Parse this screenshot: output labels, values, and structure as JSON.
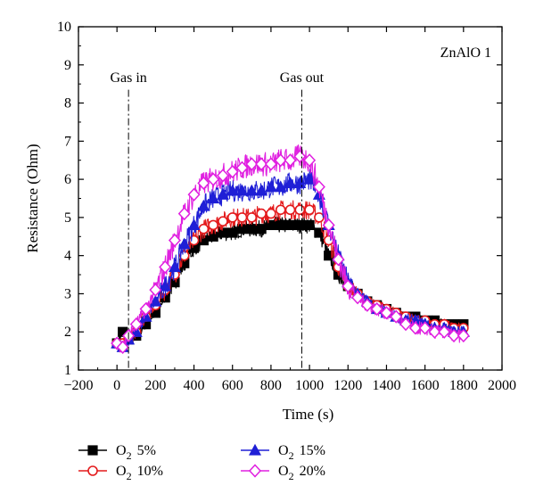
{
  "chart_data": {
    "type": "line",
    "xlabel": "Time (s)",
    "ylabel": "Resistance (Ohm)",
    "xlim": [
      -200,
      2000
    ],
    "ylim": [
      1,
      10
    ],
    "xticks": [
      -200,
      0,
      200,
      400,
      600,
      800,
      1000,
      1200,
      1400,
      1600,
      1800,
      2000
    ],
    "xtick_labels": [
      "−200",
      "0",
      "200",
      "400",
      "600",
      "800",
      "1000",
      "1200",
      "1400",
      "1600",
      "1800",
      "2000"
    ],
    "yticks": [
      1,
      2,
      3,
      4,
      5,
      6,
      7,
      8,
      9,
      10
    ],
    "ytick_labels": [
      "1",
      "2",
      "3",
      "4",
      "5",
      "6",
      "7",
      "8",
      "9",
      "10"
    ],
    "grid": false,
    "legend_position": "bottom",
    "annotations": [
      {
        "text": "ZnAlO 1",
        "position": "top-right"
      },
      {
        "text": "Gas in",
        "x": 60,
        "line": "dash-dot"
      },
      {
        "text": "Gas out",
        "x": 960,
        "line": "dash-dot"
      }
    ],
    "series": [
      {
        "label_main": "O",
        "label_sub": "2",
        "label_value": "5%",
        "color": "#000000",
        "marker": "square",
        "filled": true,
        "x": [
          0,
          30,
          60,
          100,
          150,
          200,
          250,
          300,
          350,
          400,
          450,
          500,
          550,
          600,
          650,
          700,
          750,
          800,
          850,
          900,
          950,
          1000,
          1050,
          1100,
          1150,
          1200,
          1250,
          1300,
          1350,
          1400,
          1450,
          1500,
          1550,
          1600,
          1650,
          1700,
          1750,
          1800
        ],
        "y": [
          1.7,
          2.0,
          1.8,
          1.9,
          2.2,
          2.5,
          2.9,
          3.3,
          3.8,
          4.2,
          4.4,
          4.5,
          4.6,
          4.6,
          4.7,
          4.7,
          4.7,
          4.8,
          4.8,
          4.8,
          4.8,
          4.8,
          4.6,
          4.0,
          3.5,
          3.2,
          3.0,
          2.8,
          2.7,
          2.6,
          2.5,
          2.4,
          2.4,
          2.3,
          2.3,
          2.2,
          2.2,
          2.2
        ]
      },
      {
        "label_main": "O",
        "label_sub": "2",
        "label_value": "10%",
        "color": "#e41a1c",
        "marker": "circle",
        "filled": false,
        "x": [
          0,
          30,
          60,
          100,
          150,
          200,
          250,
          300,
          350,
          400,
          450,
          500,
          550,
          600,
          650,
          700,
          750,
          800,
          850,
          900,
          950,
          1000,
          1050,
          1100,
          1150,
          1200,
          1250,
          1300,
          1350,
          1400,
          1450,
          1500,
          1550,
          1600,
          1650,
          1700,
          1750,
          1800
        ],
        "y": [
          1.7,
          1.7,
          1.8,
          2.0,
          2.4,
          2.7,
          3.1,
          3.5,
          4.0,
          4.4,
          4.7,
          4.8,
          4.9,
          5.0,
          5.0,
          5.0,
          5.1,
          5.1,
          5.2,
          5.2,
          5.2,
          5.2,
          5.0,
          4.4,
          3.7,
          3.2,
          3.0,
          2.8,
          2.7,
          2.6,
          2.5,
          2.4,
          2.3,
          2.3,
          2.2,
          2.2,
          2.1,
          2.1
        ]
      },
      {
        "label_main": "O",
        "label_sub": "2",
        "label_value": "15%",
        "color": "#1f1fd6",
        "marker": "triangle",
        "filled": true,
        "x": [
          0,
          30,
          60,
          100,
          150,
          200,
          250,
          300,
          350,
          400,
          450,
          500,
          550,
          600,
          650,
          700,
          750,
          800,
          850,
          900,
          950,
          1000,
          1050,
          1100,
          1150,
          1200,
          1250,
          1300,
          1350,
          1400,
          1450,
          1500,
          1550,
          1600,
          1650,
          1700,
          1750,
          1800
        ],
        "y": [
          1.7,
          1.6,
          1.8,
          2.0,
          2.4,
          2.8,
          3.2,
          3.7,
          4.3,
          4.8,
          5.3,
          5.5,
          5.6,
          5.7,
          5.7,
          5.7,
          5.7,
          5.8,
          5.8,
          5.9,
          5.9,
          6.0,
          5.6,
          4.8,
          4.0,
          3.3,
          3.0,
          2.8,
          2.6,
          2.5,
          2.4,
          2.3,
          2.3,
          2.2,
          2.1,
          2.1,
          2.0,
          2.0
        ]
      },
      {
        "label_main": "O",
        "label_sub": "2",
        "label_value": "20%",
        "color": "#e020e0",
        "marker": "diamond",
        "filled": false,
        "x": [
          0,
          30,
          60,
          100,
          150,
          200,
          250,
          300,
          350,
          400,
          450,
          500,
          550,
          600,
          650,
          700,
          750,
          800,
          850,
          900,
          950,
          1000,
          1050,
          1100,
          1150,
          1200,
          1250,
          1300,
          1350,
          1400,
          1450,
          1500,
          1550,
          1600,
          1650,
          1700,
          1750,
          1800
        ],
        "y": [
          1.7,
          1.6,
          1.9,
          2.2,
          2.6,
          3.1,
          3.7,
          4.4,
          5.1,
          5.6,
          5.9,
          6.0,
          6.1,
          6.2,
          6.3,
          6.4,
          6.4,
          6.4,
          6.5,
          6.5,
          6.6,
          6.5,
          5.8,
          4.8,
          3.9,
          3.2,
          2.9,
          2.7,
          2.6,
          2.5,
          2.4,
          2.2,
          2.1,
          2.1,
          2.0,
          2.0,
          1.9,
          1.9
        ]
      }
    ]
  }
}
